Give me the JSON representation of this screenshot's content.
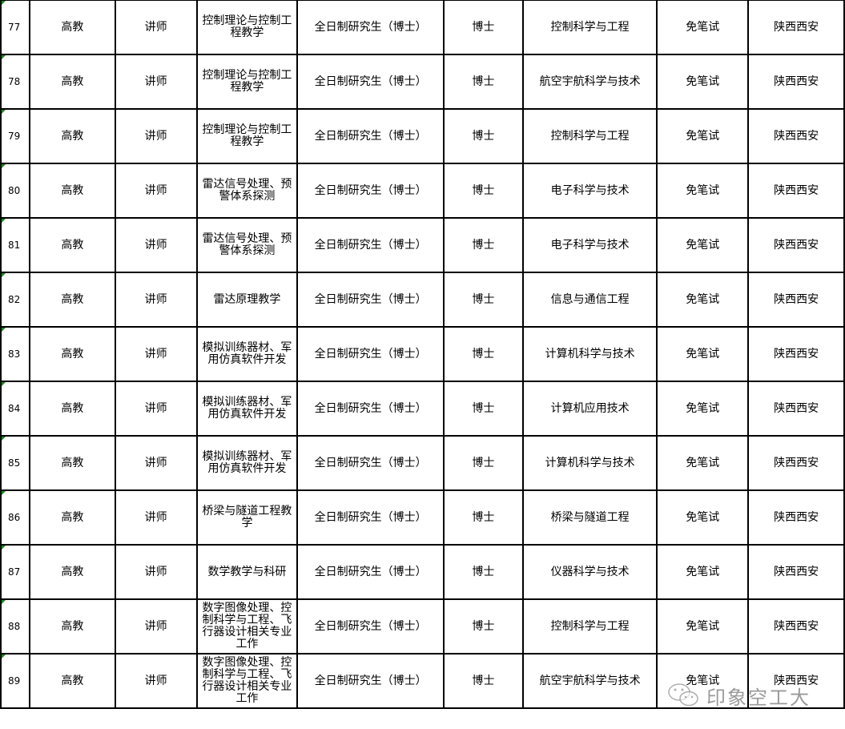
{
  "rows": [
    {
      "no": "77",
      "type": "高教",
      "title": "讲师",
      "direction": "控制理论与控制工程教学",
      "education": "全日制研究生（博士）",
      "degree": "博士",
      "major": "控制科学与工程",
      "exam": "免笔试",
      "location": "陕西西安"
    },
    {
      "no": "78",
      "type": "高教",
      "title": "讲师",
      "direction": "控制理论与控制工程教学",
      "education": "全日制研究生（博士）",
      "degree": "博士",
      "major": "航空宇航科学与技术",
      "exam": "免笔试",
      "location": "陕西西安"
    },
    {
      "no": "79",
      "type": "高教",
      "title": "讲师",
      "direction": "控制理论与控制工程教学",
      "education": "全日制研究生（博士）",
      "degree": "博士",
      "major": "控制科学与工程",
      "exam": "免笔试",
      "location": "陕西西安"
    },
    {
      "no": "80",
      "type": "高教",
      "title": "讲师",
      "direction": "雷达信号处理、预警体系探测",
      "education": "全日制研究生（博士）",
      "degree": "博士",
      "major": "电子科学与技术",
      "exam": "免笔试",
      "location": "陕西西安"
    },
    {
      "no": "81",
      "type": "高教",
      "title": "讲师",
      "direction": "雷达信号处理、预警体系探测",
      "education": "全日制研究生（博士）",
      "degree": "博士",
      "major": "电子科学与技术",
      "exam": "免笔试",
      "location": "陕西西安"
    },
    {
      "no": "82",
      "type": "高教",
      "title": "讲师",
      "direction": "雷达原理教学",
      "education": "全日制研究生（博士）",
      "degree": "博士",
      "major": "信息与通信工程",
      "exam": "免笔试",
      "location": "陕西西安"
    },
    {
      "no": "83",
      "type": "高教",
      "title": "讲师",
      "direction": "模拟训练器材、军用仿真软件开发",
      "education": "全日制研究生（博士）",
      "degree": "博士",
      "major": "计算机科学与技术",
      "exam": "免笔试",
      "location": "陕西西安"
    },
    {
      "no": "84",
      "type": "高教",
      "title": "讲师",
      "direction": "模拟训练器材、军用仿真软件开发",
      "education": "全日制研究生（博士）",
      "degree": "博士",
      "major": "计算机应用技术",
      "exam": "免笔试",
      "location": "陕西西安"
    },
    {
      "no": "85",
      "type": "高教",
      "title": "讲师",
      "direction": "模拟训练器材、军用仿真软件开发",
      "education": "全日制研究生（博士）",
      "degree": "博士",
      "major": "计算机科学与技术",
      "exam": "免笔试",
      "location": "陕西西安"
    },
    {
      "no": "86",
      "type": "高教",
      "title": "讲师",
      "direction": "桥梁与隧道工程教学",
      "education": "全日制研究生（博士）",
      "degree": "博士",
      "major": "桥梁与隧道工程",
      "exam": "免笔试",
      "location": "陕西西安"
    },
    {
      "no": "87",
      "type": "高教",
      "title": "讲师",
      "direction": "数学教学与科研",
      "education": "全日制研究生（博士）",
      "degree": "博士",
      "major": "仪器科学与技术",
      "exam": "免笔试",
      "location": "陕西西安"
    },
    {
      "no": "88",
      "type": "高教",
      "title": "讲师",
      "direction": "数字图像处理、控制科学与工程、飞行器设计相关专业工作",
      "education": "全日制研究生（博士）",
      "degree": "博士",
      "major": "控制科学与工程",
      "exam": "免笔试",
      "location": "陕西西安"
    },
    {
      "no": "89",
      "type": "高教",
      "title": "讲师",
      "direction": "数字图像处理、控制科学与工程、飞行器设计相关专业工作",
      "education": "全日制研究生（博士）",
      "degree": "博士",
      "major": "航空宇航科学与技术",
      "exam": "免笔试",
      "location": "陕西西安"
    }
  ],
  "watermark": {
    "text": "印象空工大",
    "icon": "wechat-icon"
  },
  "colors": {
    "cell_marker": "#1a8a1a",
    "border": "#000000"
  }
}
